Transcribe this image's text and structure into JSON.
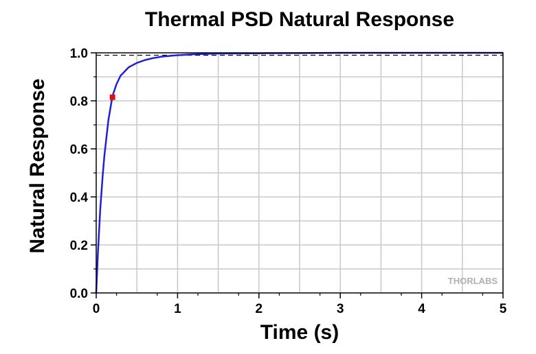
{
  "chart_data": {
    "type": "line",
    "title": "Thermal PSD Natural Response",
    "xlabel": "Time (s)",
    "ylabel": "Natural Response",
    "xlim": [
      0,
      5
    ],
    "ylim": [
      0,
      1.0
    ],
    "x_ticks": [
      "0",
      "1",
      "2",
      "3",
      "4",
      "5"
    ],
    "y_ticks": [
      "0.0",
      "0.2",
      "0.4",
      "0.6",
      "0.8",
      "1.0"
    ],
    "x_tick_values": [
      0,
      1,
      2,
      3,
      4,
      5
    ],
    "y_tick_values": [
      0,
      0.2,
      0.4,
      0.6,
      0.8,
      1.0
    ],
    "grid": true,
    "series": [
      {
        "color": "#1f1fd6",
        "style": "solid",
        "x": [
          0,
          0.02,
          0.05,
          0.08,
          0.1,
          0.15,
          0.2,
          0.25,
          0.3,
          0.4,
          0.5,
          0.6,
          0.7,
          0.8,
          1.0,
          1.2,
          1.5,
          2.0,
          2.5,
          3.0,
          4.0,
          5.0
        ],
        "values": [
          0,
          0.16,
          0.35,
          0.49,
          0.57,
          0.72,
          0.82,
          0.87,
          0.905,
          0.94,
          0.958,
          0.97,
          0.978,
          0.984,
          0.99,
          0.994,
          0.997,
          0.998,
          0.999,
          1.0,
          1.0,
          1.0
        ]
      }
    ],
    "reference_line": {
      "y": 0.99,
      "style": "dashed",
      "color": "#000000"
    },
    "marker": {
      "x": 0.2,
      "y": 0.815,
      "color": "#e01010"
    },
    "watermark": "THORLABS"
  }
}
